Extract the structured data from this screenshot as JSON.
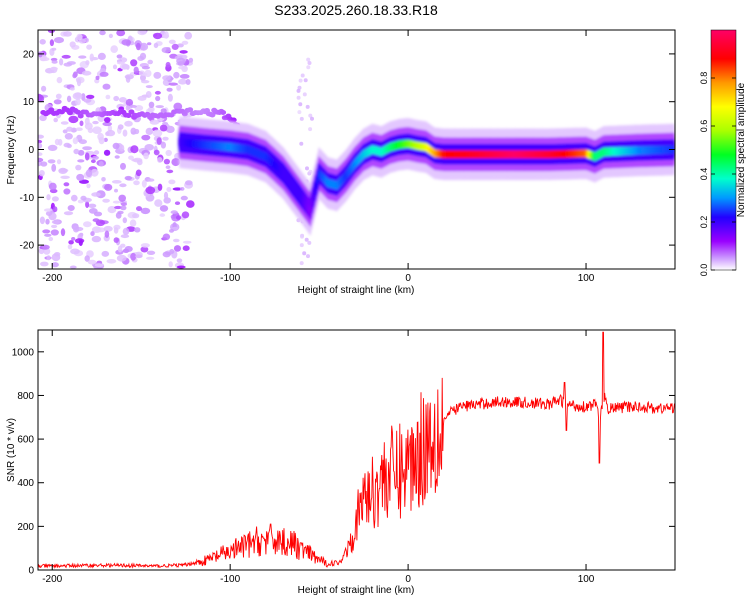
{
  "figure_title": "S233.2025.260.18.33.R18",
  "chart_data": [
    {
      "type": "heatmap",
      "title": "S233.2025.260.18.33.R18",
      "xlabel": "Height of straight line (km)",
      "ylabel": "Frequency (Hz)",
      "xlim": [
        -208,
        150
      ],
      "ylim": [
        -25,
        25
      ],
      "xticks": [
        -200,
        -100,
        0,
        100
      ],
      "yticks": [
        -20,
        -10,
        0,
        10,
        20
      ],
      "colorbar": {
        "label": "Normalized spectral amplitude",
        "range": [
          0.0,
          1.0
        ],
        "ticks": [
          0.0,
          0.2,
          0.4,
          0.6,
          0.8
        ],
        "colors": [
          "#ffffff",
          "#cc99ff",
          "#9900ff",
          "#2200ff",
          "#0099ff",
          "#00ffcc",
          "#00ff22",
          "#aaff00",
          "#ffff00",
          "#ff9900",
          "#ff0000",
          "#ff0066"
        ]
      },
      "ridge": {
        "x": [
          -128,
          -115,
          -100,
          -90,
          -80,
          -70,
          -60,
          -55,
          -50,
          -45,
          -40,
          -35,
          -30,
          -25,
          -20,
          -15,
          -10,
          -5,
          0,
          5,
          10,
          15,
          20,
          40,
          60,
          80,
          100,
          105,
          110,
          130,
          150
        ],
        "y": [
          1.5,
          1.0,
          0.5,
          0.0,
          -1.5,
          -5.0,
          -10.0,
          -12.5,
          -5.0,
          -7.0,
          -7.5,
          -5.5,
          -3.0,
          -1.0,
          0.0,
          -0.5,
          0.5,
          1.0,
          1.2,
          0.8,
          0.5,
          -0.8,
          -1.0,
          -1.0,
          -1.0,
          -1.0,
          -0.8,
          -1.5,
          -0.5,
          -0.2,
          0.0
        ],
        "amplitude": [
          0.25,
          0.3,
          0.35,
          0.3,
          0.3,
          0.25,
          0.25,
          0.2,
          0.3,
          0.35,
          0.35,
          0.3,
          0.35,
          0.4,
          0.45,
          0.45,
          0.5,
          0.55,
          0.6,
          0.65,
          0.7,
          0.8,
          0.9,
          0.95,
          1.0,
          0.95,
          0.85,
          0.5,
          0.5,
          0.35,
          0.3
        ]
      },
      "upper_track": {
        "x": [
          -205,
          -190,
          -175,
          -160,
          -145,
          -130,
          -115,
          -105,
          -95
        ],
        "y": [
          8,
          8,
          7,
          7.5,
          7,
          8,
          8,
          7.5,
          5
        ],
        "amplitude": [
          0.15,
          0.15,
          0.12,
          0.15,
          0.12,
          0.12,
          0.1,
          0.12,
          0.18
        ]
      },
      "noise_region": {
        "x_range": [
          -208,
          -122
        ],
        "y_range": [
          -25,
          25
        ]
      }
    },
    {
      "type": "line",
      "xlabel": "Height of straight line (km)",
      "ylabel": "SNR (10 * v/v)",
      "xlim": [
        -208,
        150
      ],
      "ylim": [
        0,
        1100
      ],
      "xticks": [
        -200,
        -100,
        0,
        100
      ],
      "yticks": [
        0,
        200,
        400,
        600,
        800,
        1000
      ],
      "series": [
        {
          "name": "SNR",
          "color": "#ff0000",
          "x": [
            -208,
            -200,
            -180,
            -160,
            -140,
            -125,
            -115,
            -105,
            -95,
            -85,
            -75,
            -65,
            -55,
            -45,
            -38,
            -32,
            -28,
            -24,
            -20,
            -15,
            -10,
            -5,
            0,
            5,
            10,
            15,
            20,
            25,
            30,
            40,
            50,
            60,
            70,
            80,
            85,
            90,
            95,
            100,
            105,
            108,
            110,
            112,
            120,
            130,
            140,
            150
          ],
          "y": [
            15,
            15,
            18,
            18,
            15,
            20,
            40,
            70,
            100,
            130,
            140,
            120,
            70,
            25,
            30,
            150,
            250,
            350,
            350,
            420,
            440,
            450,
            480,
            530,
            590,
            640,
            690,
            730,
            750,
            760,
            770,
            770,
            765,
            760,
            780,
            760,
            750,
            750,
            760,
            700,
            800,
            740,
            745,
            750,
            740,
            745
          ]
        }
      ]
    }
  ]
}
